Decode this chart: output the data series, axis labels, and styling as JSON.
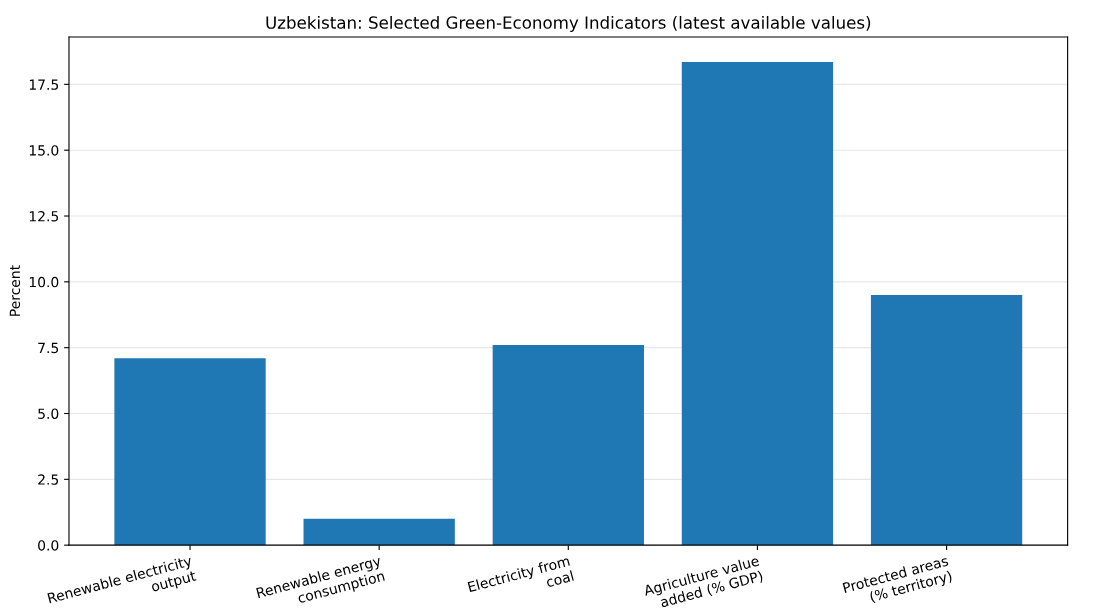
{
  "chart_data": {
    "type": "bar",
    "title": "Uzbekistan: Selected Green-Economy Indicators (latest available values)",
    "ylabel": "Percent",
    "categories": [
      "Renewable electricity\noutput",
      "Renewable energy\nconsumption",
      "Electricity from\ncoal",
      "Agriculture value\nadded (% GDP)",
      "Protected areas\n(% territory)"
    ],
    "values": [
      7.1,
      1.0,
      7.6,
      18.35,
      9.5
    ],
    "color": "#1f77b4",
    "ylim": [
      0,
      19.3
    ],
    "yticks": [
      {
        "value": 0,
        "label": "0.0"
      },
      {
        "value": 2.5,
        "label": "2.5"
      },
      {
        "value": 5,
        "label": "5.0"
      },
      {
        "value": 7.5,
        "label": "7.5"
      },
      {
        "value": 10,
        "label": "10.0"
      },
      {
        "value": 12.5,
        "label": "12.5"
      },
      {
        "value": 15,
        "label": "15.0"
      },
      {
        "value": 17.5,
        "label": "17.5"
      }
    ],
    "grid": "y"
  }
}
